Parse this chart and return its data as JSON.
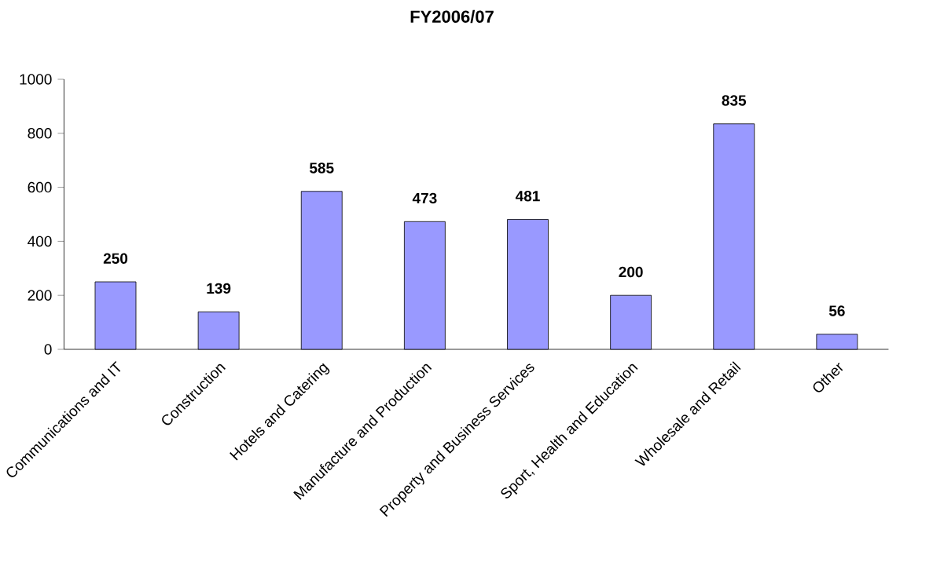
{
  "chart_data": {
    "type": "bar",
    "title": "FY2006/07",
    "categories": [
      "Communications and IT",
      "Construction",
      "Hotels and Catering",
      "Manufacture and Production",
      "Property and Business Services",
      "Sport, Health and Education",
      "Wholesale and Retail",
      "Other"
    ],
    "values": [
      250,
      139,
      585,
      473,
      481,
      200,
      835,
      56
    ],
    "color": "#9999ff",
    "ylim": [
      0,
      1000
    ],
    "yticks": [
      0,
      200,
      400,
      600,
      800,
      1000
    ],
    "data_labels": true
  }
}
